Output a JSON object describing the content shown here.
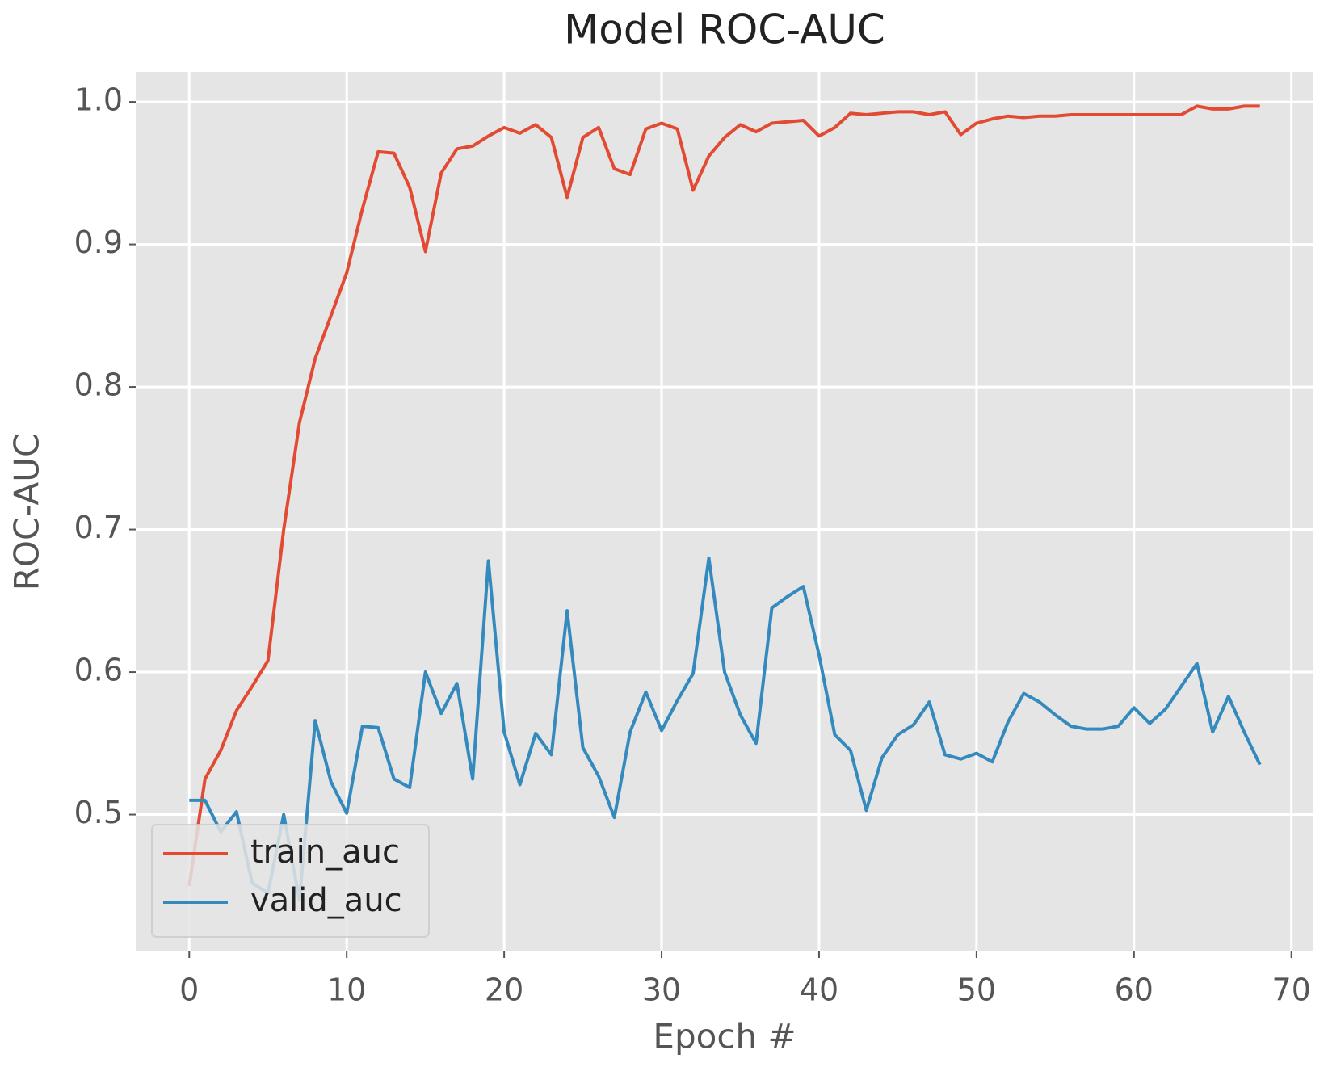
{
  "chart_data": {
    "type": "line",
    "title": "Model ROC-AUC",
    "x_label": "Epoch #",
    "y_label": "ROC-AUC",
    "x": [
      0,
      1,
      2,
      3,
      4,
      5,
      6,
      7,
      8,
      9,
      10,
      11,
      12,
      13,
      14,
      15,
      16,
      17,
      18,
      19,
      20,
      21,
      22,
      23,
      24,
      25,
      26,
      27,
      28,
      29,
      30,
      31,
      32,
      33,
      34,
      35,
      36,
      37,
      38,
      39,
      40,
      41,
      42,
      43,
      44,
      45,
      46,
      47,
      48,
      49,
      50,
      51,
      52,
      53,
      54,
      55,
      56,
      57,
      58,
      59,
      60,
      61,
      62,
      63,
      64,
      65,
      66,
      67,
      68
    ],
    "series": [
      {
        "name": "train_auc",
        "color": "#E24A33",
        "values": [
          0.45,
          0.525,
          0.545,
          0.573,
          0.59,
          0.608,
          0.7,
          0.775,
          0.82,
          0.85,
          0.88,
          0.925,
          0.965,
          0.964,
          0.94,
          0.895,
          0.95,
          0.967,
          0.969,
          0.976,
          0.982,
          0.978,
          0.984,
          0.975,
          0.933,
          0.975,
          0.982,
          0.953,
          0.949,
          0.981,
          0.985,
          0.981,
          0.938,
          0.962,
          0.975,
          0.984,
          0.979,
          0.985,
          0.986,
          0.987,
          0.976,
          0.982,
          0.992,
          0.991,
          0.992,
          0.993,
          0.993,
          0.991,
          0.993,
          0.977,
          0.985,
          0.988,
          0.99,
          0.989,
          0.99,
          0.99,
          0.991,
          0.991,
          0.991,
          0.991,
          0.991,
          0.991,
          0.991,
          0.991,
          0.997,
          0.995,
          0.995,
          0.997,
          0.997
        ]
      },
      {
        "name": "valid_auc",
        "color": "#348ABD",
        "values": [
          0.51,
          0.51,
          0.488,
          0.502,
          0.452,
          0.445,
          0.5,
          0.44,
          0.566,
          0.523,
          0.501,
          0.562,
          0.561,
          0.525,
          0.519,
          0.6,
          0.571,
          0.592,
          0.525,
          0.678,
          0.558,
          0.521,
          0.557,
          0.542,
          0.643,
          0.547,
          0.527,
          0.498,
          0.558,
          0.586,
          0.559,
          0.58,
          0.599,
          0.68,
          0.6,
          0.57,
          0.55,
          0.645,
          0.653,
          0.66,
          0.612,
          0.556,
          0.545,
          0.503,
          0.54,
          0.556,
          0.563,
          0.579,
          0.542,
          0.539,
          0.543,
          0.537,
          0.565,
          0.585,
          0.579,
          0.57,
          0.562,
          0.56,
          0.56,
          0.562,
          0.575,
          0.564,
          0.574,
          0.59,
          0.606,
          0.558,
          0.583,
          0.558,
          0.535
        ]
      }
    ],
    "xlim": [
      -3.4,
      71.4
    ],
    "xticks": [
      0,
      10,
      20,
      30,
      40,
      50,
      60,
      70
    ],
    "ylim": [
      0.404,
      1.021
    ],
    "yticks": [
      0.5,
      0.6,
      0.7,
      0.8,
      0.9,
      {
        "value": 1,
        "label": "1.0"
      }
    ],
    "grid": true,
    "legend_position": "lower-left"
  }
}
